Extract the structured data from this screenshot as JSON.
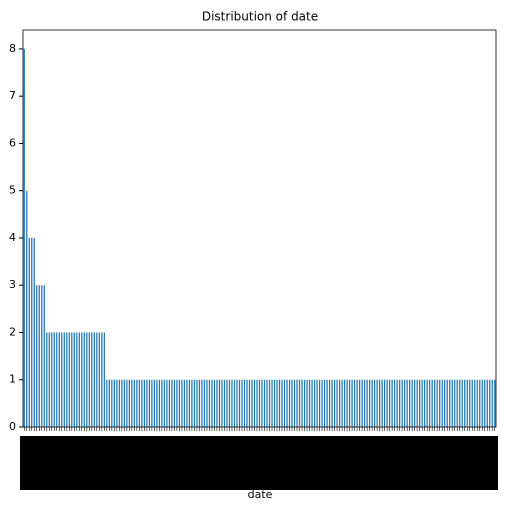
{
  "chart_data": {
    "type": "bar",
    "title": "Distribution of date",
    "x_label": "date",
    "categories": [
      null,
      null,
      null,
      null,
      null,
      null,
      null,
      null,
      null,
      null,
      null,
      null,
      null,
      null,
      null,
      null,
      null,
      null,
      null,
      null,
      null,
      null,
      null,
      null,
      null,
      null,
      null,
      null,
      null,
      null,
      null,
      null,
      null,
      null,
      null,
      null,
      null,
      null,
      null,
      null,
      null,
      null,
      null,
      null,
      null,
      null,
      null,
      null,
      null,
      null,
      null,
      null,
      null,
      null,
      null,
      null,
      null,
      null,
      null,
      null,
      null,
      null,
      null,
      null,
      null,
      null,
      null,
      null,
      null,
      null,
      null,
      null,
      null,
      null,
      null,
      null,
      null,
      null,
      null,
      null,
      null,
      null,
      null,
      null,
      null,
      null,
      null,
      null,
      null,
      null,
      null,
      null,
      null,
      null,
      null,
      null,
      null,
      null,
      null,
      null,
      null,
      null,
      null,
      null,
      null,
      null,
      null,
      null,
      null,
      null,
      null,
      null,
      null,
      null,
      null,
      null,
      null,
      null,
      null,
      null,
      null,
      null,
      null,
      null,
      null,
      null,
      null,
      null,
      null,
      null,
      null,
      null,
      null,
      null,
      null,
      null,
      null,
      null,
      null,
      null,
      null,
      null,
      null,
      null,
      null,
      null,
      null,
      null,
      null,
      null,
      null,
      null,
      null,
      null,
      null,
      null,
      null,
      null,
      null,
      null,
      null,
      null,
      null,
      null,
      null,
      null,
      null,
      null,
      null,
      null,
      null,
      null,
      null,
      null,
      null,
      null,
      null,
      null,
      null,
      null,
      null,
      null,
      null,
      null,
      null,
      null,
      null,
      null,
      null
    ],
    "values": [
      8,
      5,
      4,
      4,
      4,
      3,
      3,
      3,
      3,
      2,
      2,
      2,
      2,
      2,
      2,
      2,
      2,
      2,
      2,
      2,
      2,
      2,
      2,
      2,
      2,
      2,
      2,
      2,
      2,
      2,
      2,
      2,
      2,
      1,
      1,
      1,
      1,
      1,
      1,
      1,
      1,
      1,
      1,
      1,
      1,
      1,
      1,
      1,
      1,
      1,
      1,
      1,
      1,
      1,
      1,
      1,
      1,
      1,
      1,
      1,
      1,
      1,
      1,
      1,
      1,
      1,
      1,
      1,
      1,
      1,
      1,
      1,
      1,
      1,
      1,
      1,
      1,
      1,
      1,
      1,
      1,
      1,
      1,
      1,
      1,
      1,
      1,
      1,
      1,
      1,
      1,
      1,
      1,
      1,
      1,
      1,
      1,
      1,
      1,
      1,
      1,
      1,
      1,
      1,
      1,
      1,
      1,
      1,
      1,
      1,
      1,
      1,
      1,
      1,
      1,
      1,
      1,
      1,
      1,
      1,
      1,
      1,
      1,
      1,
      1,
      1,
      1,
      1,
      1,
      1,
      1,
      1,
      1,
      1,
      1,
      1,
      1,
      1,
      1,
      1,
      1,
      1,
      1,
      1,
      1,
      1,
      1,
      1,
      1,
      1,
      1,
      1,
      1,
      1,
      1,
      1,
      1,
      1,
      1,
      1,
      1,
      1,
      1,
      1,
      1,
      1,
      1,
      1,
      1,
      1,
      1,
      1,
      1,
      1,
      1,
      1,
      1,
      1,
      1,
      1,
      1,
      1,
      1,
      1,
      1,
      1,
      1,
      1,
      1
    ],
    "color": "#1f77b4",
    "ylim": [
      0,
      8.4
    ],
    "yticks": [
      0,
      1,
      2,
      3,
      4,
      5,
      6,
      7,
      8
    ],
    "grid": false
  }
}
